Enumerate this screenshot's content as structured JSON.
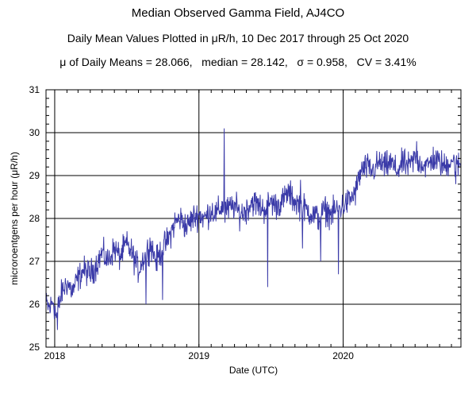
{
  "chart_data": {
    "type": "line",
    "title": "Median Observed Gamma Field, AJ4CO",
    "subtitle": "Daily Mean Values Plotted in μR/h, 10 Dec 2017 through 25 Oct 2020",
    "stats_line": "μ of Daily Means = 28.066,   median = 28.142,   σ = 0.958,   CV = 3.41%",
    "xlabel": "Date (UTC)",
    "ylabel": "microroentgens per hour (μR/h)",
    "x_range": [
      "2017-12-10",
      "2020-10-25"
    ],
    "ylim": [
      25,
      31
    ],
    "y_ticks": [
      "25",
      "26",
      "27",
      "28",
      "29",
      "30",
      "31"
    ],
    "x_ticks": [
      {
        "label": "2018",
        "date": "2018-01-01"
      },
      {
        "label": "2019",
        "date": "2019-01-01"
      },
      {
        "label": "2020",
        "date": "2020-01-01"
      }
    ],
    "grid": true,
    "series": [
      {
        "color": "#3a3aa8",
        "points": [
          [
            "2017-12-10",
            26.0
          ],
          [
            "2017-12-20",
            25.9
          ],
          [
            "2017-12-28",
            26.1
          ],
          [
            "2018-01-05",
            25.7
          ],
          [
            "2018-01-12",
            26.0
          ],
          [
            "2018-01-20",
            26.3
          ],
          [
            "2018-02-01",
            26.5
          ],
          [
            "2018-02-15",
            26.3
          ],
          [
            "2018-03-01",
            26.6
          ],
          [
            "2018-03-15",
            26.8
          ],
          [
            "2018-04-01",
            26.7
          ],
          [
            "2018-04-15",
            26.9
          ],
          [
            "2018-05-01",
            27.2
          ],
          [
            "2018-05-15",
            27.0
          ],
          [
            "2018-06-01",
            27.3
          ],
          [
            "2018-06-15",
            27.1
          ],
          [
            "2018-07-01",
            27.4
          ],
          [
            "2018-07-15",
            27.2
          ],
          [
            "2018-08-01",
            26.8
          ],
          [
            "2018-08-15",
            27.1
          ],
          [
            "2018-09-01",
            27.4
          ],
          [
            "2018-09-15",
            27.0
          ],
          [
            "2018-10-01",
            27.3
          ],
          [
            "2018-10-15",
            27.5
          ],
          [
            "2018-11-01",
            27.9
          ],
          [
            "2018-11-15",
            28.0
          ],
          [
            "2018-12-01",
            27.8
          ],
          [
            "2018-12-15",
            28.0
          ],
          [
            "2019-01-01",
            28.1
          ],
          [
            "2019-01-15",
            28.0
          ],
          [
            "2019-02-01",
            28.2
          ],
          [
            "2019-02-15",
            28.1
          ],
          [
            "2019-03-01",
            28.3
          ],
          [
            "2019-03-15",
            28.2
          ],
          [
            "2019-04-01",
            28.3
          ],
          [
            "2019-04-15",
            28.1
          ],
          [
            "2019-05-01",
            28.2
          ],
          [
            "2019-05-15",
            28.4
          ],
          [
            "2019-06-01",
            28.3
          ],
          [
            "2019-06-15",
            28.2
          ],
          [
            "2019-07-01",
            28.4
          ],
          [
            "2019-07-15",
            28.3
          ],
          [
            "2019-08-01",
            28.4
          ],
          [
            "2019-08-15",
            28.6
          ],
          [
            "2019-09-01",
            28.4
          ],
          [
            "2019-09-15",
            28.3
          ],
          [
            "2019-10-01",
            28.2
          ],
          [
            "2019-10-15",
            28.1
          ],
          [
            "2019-11-01",
            28.0
          ],
          [
            "2019-11-15",
            28.2
          ],
          [
            "2019-12-01",
            28.1
          ],
          [
            "2019-12-15",
            28.2
          ],
          [
            "2020-01-01",
            28.3
          ],
          [
            "2020-01-15",
            28.4
          ],
          [
            "2020-02-01",
            28.6
          ],
          [
            "2020-02-15",
            29.1
          ],
          [
            "2020-03-01",
            29.2
          ],
          [
            "2020-03-15",
            29.1
          ],
          [
            "2020-04-01",
            29.3
          ],
          [
            "2020-04-15",
            29.2
          ],
          [
            "2020-05-01",
            29.3
          ],
          [
            "2020-05-15",
            29.1
          ],
          [
            "2020-06-01",
            29.3
          ],
          [
            "2020-06-15",
            29.2
          ],
          [
            "2020-07-01",
            29.4
          ],
          [
            "2020-07-15",
            29.3
          ],
          [
            "2020-08-01",
            29.2
          ],
          [
            "2020-08-15",
            29.4
          ],
          [
            "2020-09-01",
            29.3
          ],
          [
            "2020-09-15",
            29.2
          ],
          [
            "2020-10-01",
            29.4
          ],
          [
            "2020-10-15",
            29.2
          ],
          [
            "2020-10-25",
            29.3
          ]
        ],
        "spikes": [
          [
            "2018-01-08",
            25.4
          ],
          [
            "2018-08-20",
            26.0
          ],
          [
            "2018-10-01",
            26.1
          ],
          [
            "2019-03-06",
            30.1
          ],
          [
            "2019-03-08",
            27.9
          ],
          [
            "2019-06-24",
            26.4
          ],
          [
            "2019-11-05",
            27.0
          ],
          [
            "2019-12-20",
            26.7
          ],
          [
            "2020-07-05",
            29.8
          ],
          [
            "2020-10-12",
            28.8
          ],
          [
            "2019-09-15",
            28.9
          ],
          [
            "2019-09-20",
            27.3
          ]
        ]
      }
    ]
  }
}
